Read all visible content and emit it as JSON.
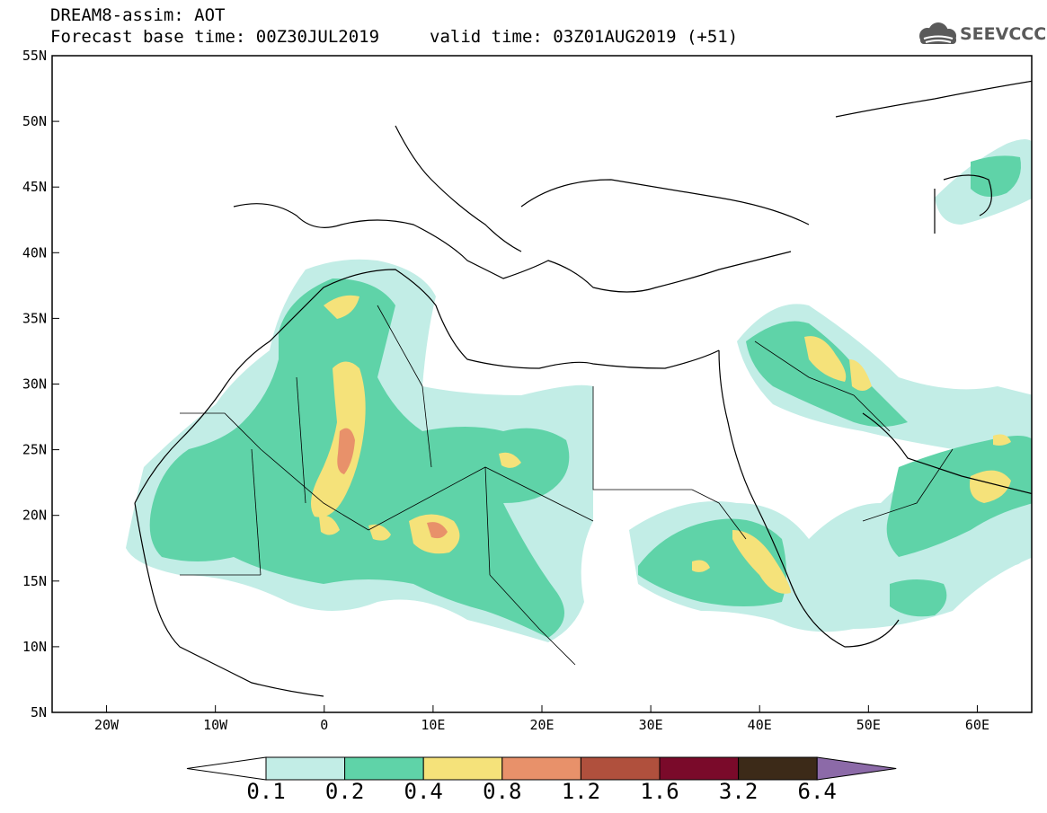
{
  "title": {
    "line1": "DREAM8-assim: AOT",
    "base_time": "Forecast base time: 00Z30JUL2019",
    "valid_time": "valid time: 03Z01AUG2019 (+51)"
  },
  "logo": {
    "icon": "cloud-icon",
    "text": "SEEVCCC",
    "color": "#5a5a5a"
  },
  "map": {
    "region": "North Africa / Mediterranean / Middle East",
    "lon_range": [
      -25,
      65
    ],
    "lat_range": [
      5,
      55
    ],
    "lat_labels": [
      "5N",
      "10N",
      "15N",
      "20N",
      "25N",
      "30N",
      "35N",
      "40N",
      "45N",
      "50N",
      "55N"
    ],
    "lon_labels": [
      "20W",
      "10W",
      "0",
      "10E",
      "20E",
      "30E",
      "40E",
      "50E",
      "60E"
    ]
  },
  "legend": {
    "labels": [
      "0.1",
      "0.2",
      "0.4",
      "0.8",
      "1.2",
      "1.6",
      "3.2",
      "6.4"
    ],
    "colors": [
      "#ffffff",
      "#c2ede6",
      "#5fd3a8",
      "#f5e27a",
      "#e8916a",
      "#b0503d",
      "#7a0a2a",
      "#3c2a18",
      "#8c6aa8"
    ]
  }
}
